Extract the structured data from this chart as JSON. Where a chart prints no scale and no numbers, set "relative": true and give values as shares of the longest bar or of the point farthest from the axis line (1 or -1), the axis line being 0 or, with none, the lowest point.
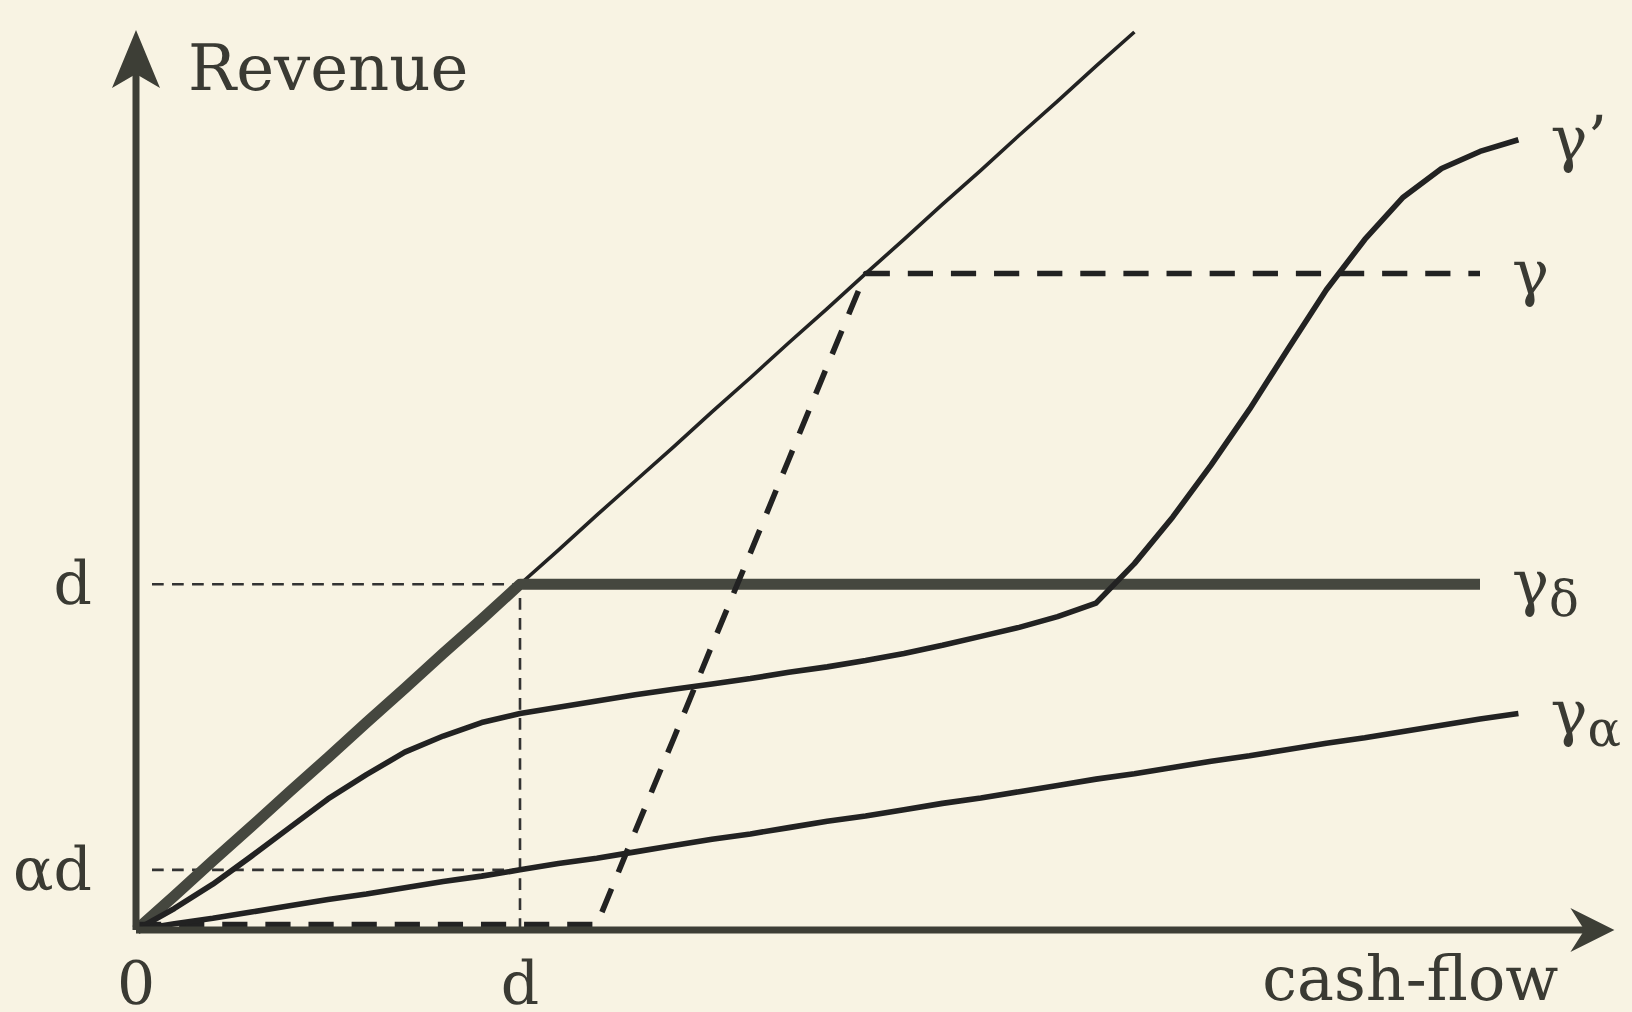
{
  "chart_data": {
    "type": "line",
    "relative": true,
    "xlabel": "cash-flow",
    "ylabel": "Revenue",
    "categories": [
      "0",
      null,
      null,
      null,
      null,
      null,
      null,
      null,
      null,
      null,
      "d",
      null,
      null,
      null,
      null,
      null,
      null,
      null,
      null,
      null,
      null,
      null,
      null,
      null,
      null,
      null,
      null,
      null,
      null,
      null,
      null,
      null,
      null,
      null,
      null,
      null,
      null
    ],
    "ref_lines": [
      {
        "axis": "y",
        "value": 0.385,
        "label": "d",
        "line_style": "dashed",
        "color": "#333333"
      },
      {
        "axis": "x",
        "value": "d",
        "line_style": "dashed",
        "color": "#333333"
      },
      {
        "axis": "y",
        "value": 0.067,
        "label": "αd",
        "line_style": "dashed",
        "color": "#333333"
      }
    ],
    "series": [
      {
        "color": "#222222",
        "line_style": "solid",
        "values": [
          0,
          0.038,
          0.077,
          0.115,
          0.154,
          0.192,
          0.231,
          0.269,
          0.308,
          0.346,
          0.385,
          0.423,
          0.462,
          0.5,
          0.538,
          0.577,
          0.615,
          0.654,
          0.692,
          0.731,
          0.769,
          0.808,
          0.846,
          0.885,
          0.923,
          0.962,
          1,
          null,
          null,
          null,
          null,
          null,
          null,
          null,
          null,
          null,
          null
        ]
      },
      {
        "name": "γ$_{δ}$",
        "color": "#45473f",
        "line_style": "solid",
        "values": [
          0,
          0.038,
          0.077,
          0.115,
          0.154,
          0.192,
          0.231,
          0.269,
          0.308,
          0.346,
          0.385,
          0.385,
          0.385,
          0.385,
          0.385,
          0.385,
          0.385,
          0.385,
          0.385,
          0.385,
          0.385,
          0.385,
          0.385,
          0.385,
          0.385,
          0.385,
          0.385,
          0.385,
          0.385,
          0.385,
          0.385,
          0.385,
          0.385,
          0.385,
          0.385,
          0.385,
          null
        ]
      },
      {
        "name": "γ",
        "color": "#222222",
        "line_style": "dashed",
        "values": [
          0.006,
          0.006,
          0.006,
          0.006,
          0.006,
          0.006,
          0.006,
          0.006,
          0.006,
          0.006,
          0.006,
          0.006,
          0.006,
          0.11,
          0.213,
          0.317,
          0.42,
          0.524,
          0.628,
          0.731,
          0.731,
          0.731,
          0.731,
          0.731,
          0.731,
          0.731,
          0.731,
          0.731,
          0.731,
          0.731,
          0.731,
          0.731,
          0.731,
          0.731,
          0.731,
          0.731,
          null
        ]
      },
      {
        "name": "γ’",
        "color": "#222222",
        "line_style": "solid",
        "values": [
          0,
          0.024,
          0.051,
          0.082,
          0.114,
          0.146,
          0.173,
          0.198,
          0.216,
          0.231,
          0.241,
          0.248,
          0.255,
          0.262,
          0.268,
          0.274,
          0.28,
          0.287,
          0.293,
          0.3,
          0.308,
          0.317,
          0.327,
          0.337,
          0.349,
          0.364,
          0.408,
          0.46,
          0.518,
          0.58,
          0.647,
          0.713,
          0.769,
          0.816,
          0.848,
          0.867,
          0.88
        ]
      },
      {
        "name": "γ$_{α}$",
        "color": "#222222",
        "line_style": "solid",
        "values": [
          0,
          0.007,
          0.013,
          0.02,
          0.027,
          0.034,
          0.04,
          0.047,
          0.054,
          0.06,
          0.067,
          0.074,
          0.08,
          0.087,
          0.094,
          0.101,
          0.107,
          0.114,
          0.121,
          0.127,
          0.134,
          0.141,
          0.147,
          0.154,
          0.161,
          0.168,
          0.174,
          0.181,
          0.188,
          0.194,
          0.201,
          0.208,
          0.214,
          0.221,
          0.228,
          0.235,
          0.241
        ]
      }
    ]
  }
}
